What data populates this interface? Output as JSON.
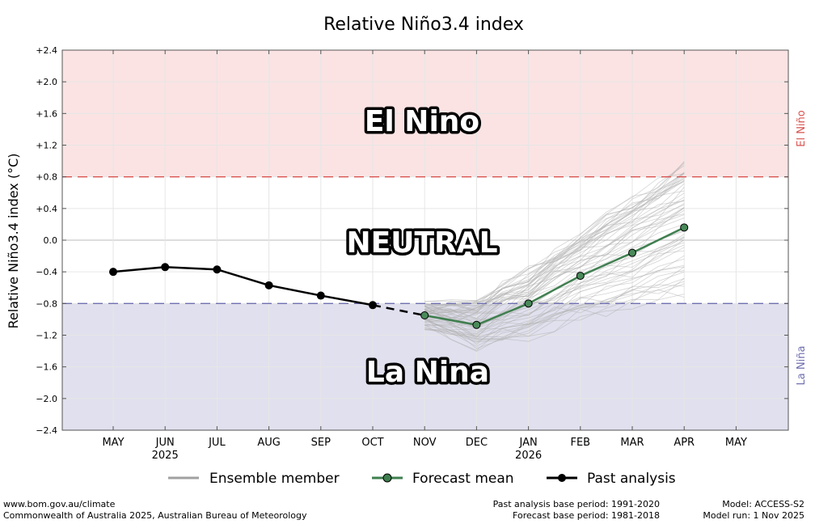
{
  "chart_data": {
    "type": "line",
    "title": "Relative Niño3.4 index",
    "ylabel": "Relative Niño3.4 index (°C)",
    "xlabel": "",
    "ylim": [
      -2.4,
      2.4
    ],
    "yticks": [
      {
        "v": 2.4,
        "label": "+2.4"
      },
      {
        "v": 2.0,
        "label": "+2.0"
      },
      {
        "v": 1.6,
        "label": "+1.6"
      },
      {
        "v": 1.2,
        "label": "+1.2"
      },
      {
        "v": 0.8,
        "label": "+0.8"
      },
      {
        "v": 0.4,
        "label": "+0.4"
      },
      {
        "v": 0.0,
        "label": "0.0"
      },
      {
        "v": -0.4,
        "label": "−0.4"
      },
      {
        "v": -0.8,
        "label": "−0.8"
      },
      {
        "v": -1.2,
        "label": "−1.2"
      },
      {
        "v": -1.6,
        "label": "−1.6"
      },
      {
        "v": -2.0,
        "label": "−2.0"
      },
      {
        "v": -2.4,
        "label": "−2.4"
      }
    ],
    "months": [
      "MAY",
      "JUN",
      "JUL",
      "AUG",
      "SEP",
      "OCT",
      "NOV",
      "DEC",
      "JAN",
      "FEB",
      "MAR",
      "APR",
      "MAY"
    ],
    "year_labels": [
      {
        "index": 1,
        "label": "2025"
      },
      {
        "index": 8,
        "label": "2026"
      }
    ],
    "thresholds": {
      "el_nino": 0.8,
      "la_nina": -0.8,
      "el_nino_color": "#d9534f",
      "la_nina_color": "#6f6fb0",
      "el_nino_fill": "#fbe3e3",
      "la_nina_fill": "#e0e0ee"
    },
    "regions": {
      "el_nino": "El Nino",
      "neutral": "NEUTRAL",
      "la_nina": "La Nina"
    },
    "side_labels": {
      "el_nino": "El Niño",
      "la_nina": "La Niña"
    },
    "series": [
      {
        "name": "Past analysis",
        "color": "#000000",
        "x": [
          0,
          1,
          2,
          3,
          4,
          5
        ],
        "values": [
          -0.4,
          -0.34,
          -0.37,
          -0.57,
          -0.7,
          -0.82
        ]
      },
      {
        "name": "Forecast mean",
        "color": "#3f7f4f",
        "x": [
          6,
          7,
          8,
          9,
          10,
          11
        ],
        "values": [
          -0.95,
          -1.07,
          -0.8,
          -0.45,
          -0.16,
          0.16
        ]
      }
    ],
    "ensemble": {
      "name": "Ensemble member",
      "color": "#b0b0b0",
      "count": 60
    },
    "legend": [
      "Ensemble member",
      "Forecast mean",
      "Past analysis"
    ]
  },
  "footer": {
    "url": "www.bom.gov.au/climate",
    "copyright": "Commonwealth of Australia 2025, Australian Bureau of Meteorology",
    "past_base": "Past analysis base period: 1991-2020",
    "forecast_base": "Forecast base period: 1981-2018",
    "model": "Model: ACCESS-S2",
    "model_run": "Model run: 1 Nov 2025"
  }
}
